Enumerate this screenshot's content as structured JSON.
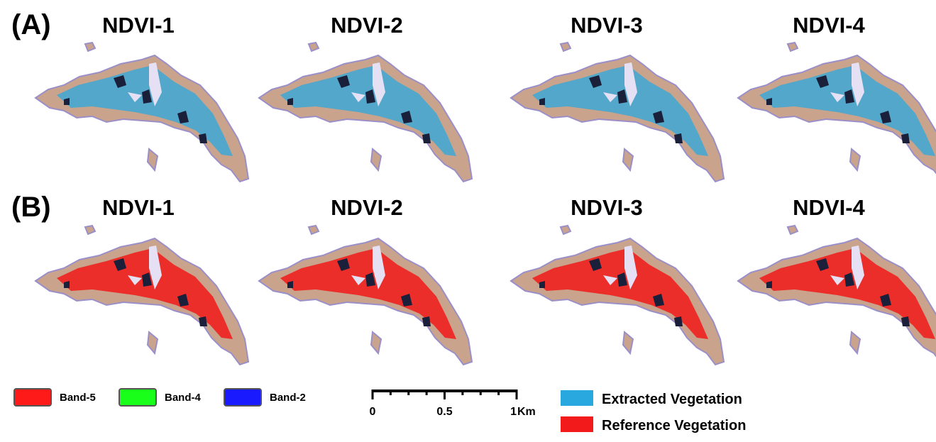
{
  "rows": [
    {
      "label": "(A)",
      "panels": [
        "NDVI-1",
        "NDVI-2",
        "NDVI-3",
        "NDVI-4"
      ]
    },
    {
      "label": "(B)",
      "panels": [
        "NDVI-1",
        "NDVI-2",
        "NDVI-3",
        "NDVI-4"
      ]
    }
  ],
  "band_legend": [
    "Band-5",
    "Band-4",
    "Band-2"
  ],
  "scale_bar": {
    "ticks": [
      "0",
      "0.5",
      "1"
    ],
    "unit": "Km"
  },
  "vegetation_legend": [
    "Extracted Vegetation",
    "Reference Vegetation"
  ]
}
